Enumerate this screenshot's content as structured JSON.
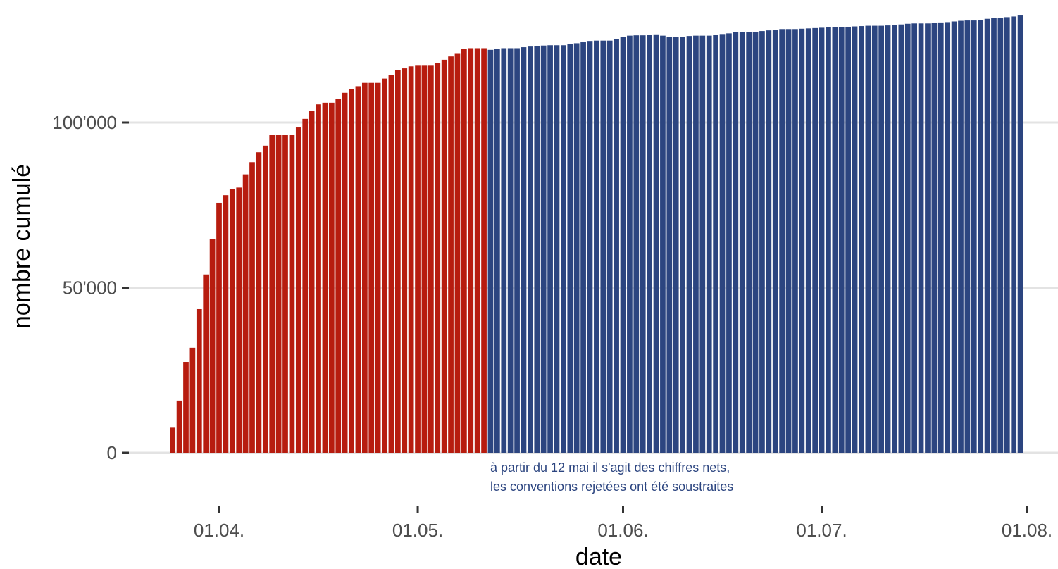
{
  "colors": {
    "gross": "#b71c0f",
    "net": "#2c4580",
    "grid": "#e3e3e3",
    "tick": "#4d4d4d",
    "annotation": "#2c4580"
  },
  "chart_data": {
    "type": "bar",
    "xlabel": "date",
    "ylabel": "nombre cumulé",
    "ylim": [
      0,
      133000
    ],
    "grid": "horizontal major only",
    "y_ticks": [
      {
        "value": 0,
        "label": "0"
      },
      {
        "value": 50000,
        "label": "50'000"
      },
      {
        "value": 100000,
        "label": "100'000"
      }
    ],
    "x_ticks": [
      {
        "date": "2020-04-01",
        "label": "01.04."
      },
      {
        "date": "2020-05-01",
        "label": "01.05."
      },
      {
        "date": "2020-06-01",
        "label": "01.06."
      },
      {
        "date": "2020-07-01",
        "label": "01.07."
      },
      {
        "date": "2020-08-01",
        "label": "01.08."
      }
    ],
    "annotation": {
      "lines": [
        "à partir du 12 mai il s'agit des chiffres nets,",
        "les conventions rejetées ont été soustraites"
      ]
    },
    "series": [
      {
        "color_key": "gross",
        "dates": [
          "2020-03-25",
          "2020-03-26",
          "2020-03-27",
          "2020-03-28",
          "2020-03-29",
          "2020-03-30",
          "2020-03-31",
          "2020-04-01",
          "2020-04-02",
          "2020-04-03",
          "2020-04-04",
          "2020-04-05",
          "2020-04-06",
          "2020-04-07",
          "2020-04-08",
          "2020-04-09",
          "2020-04-10",
          "2020-04-11",
          "2020-04-12",
          "2020-04-13",
          "2020-04-14",
          "2020-04-15",
          "2020-04-16",
          "2020-04-17",
          "2020-04-18",
          "2020-04-19",
          "2020-04-20",
          "2020-04-21",
          "2020-04-22",
          "2020-04-23",
          "2020-04-24",
          "2020-04-25",
          "2020-04-26",
          "2020-04-27",
          "2020-04-28",
          "2020-04-29",
          "2020-04-30",
          "2020-05-01",
          "2020-05-02",
          "2020-05-03",
          "2020-05-04",
          "2020-05-05",
          "2020-05-06",
          "2020-05-07",
          "2020-05-08",
          "2020-05-09",
          "2020-05-10",
          "2020-05-11"
        ],
        "values": [
          7600,
          15800,
          27500,
          31800,
          43500,
          54000,
          64700,
          75700,
          78000,
          79800,
          80300,
          84300,
          88000,
          91000,
          93000,
          96200,
          96200,
          96200,
          96300,
          98500,
          101100,
          103600,
          105500,
          106000,
          106000,
          107200,
          109000,
          110200,
          111000,
          112000,
          112000,
          112000,
          113300,
          114500,
          115800,
          116400,
          117000,
          117200,
          117200,
          117200,
          118000,
          119000,
          120000,
          121000,
          122200,
          122500,
          122500,
          122500
        ]
      },
      {
        "color_key": "net",
        "dates": [
          "2020-05-12",
          "2020-05-13",
          "2020-05-14",
          "2020-05-15",
          "2020-05-16",
          "2020-05-17",
          "2020-05-18",
          "2020-05-19",
          "2020-05-20",
          "2020-05-21",
          "2020-05-22",
          "2020-05-23",
          "2020-05-24",
          "2020-05-25",
          "2020-05-26",
          "2020-05-27",
          "2020-05-28",
          "2020-05-29",
          "2020-05-30",
          "2020-05-31",
          "2020-06-01",
          "2020-06-02",
          "2020-06-03",
          "2020-06-04",
          "2020-06-05",
          "2020-06-06",
          "2020-06-07",
          "2020-06-08",
          "2020-06-09",
          "2020-06-10",
          "2020-06-11",
          "2020-06-12",
          "2020-06-13",
          "2020-06-14",
          "2020-06-15",
          "2020-06-16",
          "2020-06-17",
          "2020-06-18",
          "2020-06-19",
          "2020-06-20",
          "2020-06-21",
          "2020-06-22",
          "2020-06-23",
          "2020-06-24",
          "2020-06-25",
          "2020-06-26",
          "2020-06-27",
          "2020-06-28",
          "2020-06-29",
          "2020-06-30",
          "2020-07-01",
          "2020-07-02",
          "2020-07-03",
          "2020-07-04",
          "2020-07-05",
          "2020-07-06",
          "2020-07-07",
          "2020-07-08",
          "2020-07-09",
          "2020-07-10",
          "2020-07-11",
          "2020-07-12",
          "2020-07-13",
          "2020-07-14",
          "2020-07-15",
          "2020-07-16",
          "2020-07-17",
          "2020-07-18",
          "2020-07-19",
          "2020-07-20",
          "2020-07-21",
          "2020-07-22",
          "2020-07-23",
          "2020-07-24",
          "2020-07-25",
          "2020-07-26",
          "2020-07-27",
          "2020-07-28",
          "2020-07-29",
          "2020-07-30",
          "2020-07-31"
        ],
        "values": [
          122000,
          122300,
          122500,
          122500,
          122500,
          122800,
          123000,
          123200,
          123300,
          123400,
          123400,
          123400,
          123700,
          124000,
          124300,
          124700,
          124800,
          124800,
          124800,
          125300,
          126000,
          126300,
          126400,
          126400,
          126500,
          126700,
          126300,
          126000,
          126000,
          126000,
          126200,
          126300,
          126300,
          126300,
          126500,
          126800,
          127000,
          127400,
          127300,
          127300,
          127500,
          127700,
          127900,
          128100,
          128300,
          128300,
          128300,
          128400,
          128500,
          128600,
          128700,
          128800,
          128800,
          128900,
          129000,
          129100,
          129200,
          129300,
          129300,
          129300,
          129400,
          129500,
          129700,
          129900,
          130000,
          130000,
          130000,
          130200,
          130300,
          130400,
          130600,
          130800,
          130900,
          130900,
          131100,
          131400,
          131600,
          131700,
          131900,
          132100,
          132400
        ]
      }
    ]
  }
}
